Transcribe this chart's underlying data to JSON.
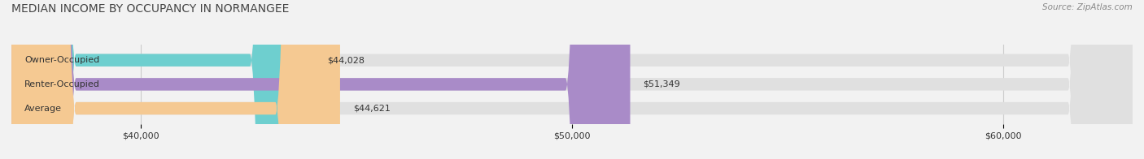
{
  "title": "MEDIAN INCOME BY OCCUPANCY IN NORMANGEE",
  "source": "Source: ZipAtlas.com",
  "categories": [
    "Owner-Occupied",
    "Renter-Occupied",
    "Average"
  ],
  "values": [
    44028,
    51349,
    44621
  ],
  "bar_colors": [
    "#6ecfcf",
    "#a98bc8",
    "#f5c992"
  ],
  "value_labels": [
    "$44,028",
    "$51,349",
    "$44,621"
  ],
  "xlim_min": 37000,
  "xlim_max": 63000,
  "xtick_values": [
    40000,
    50000,
    60000
  ],
  "xtick_labels": [
    "$40,000",
    "$50,000",
    "$60,000"
  ],
  "title_fontsize": 10,
  "label_fontsize": 8,
  "source_fontsize": 7.5,
  "bar_height": 0.52,
  "fig_bg_color": "#f2f2f2",
  "bar_bg_color": "#e0e0e0",
  "text_color": "#333333",
  "title_color": "#444444",
  "grid_color": "#cccccc"
}
